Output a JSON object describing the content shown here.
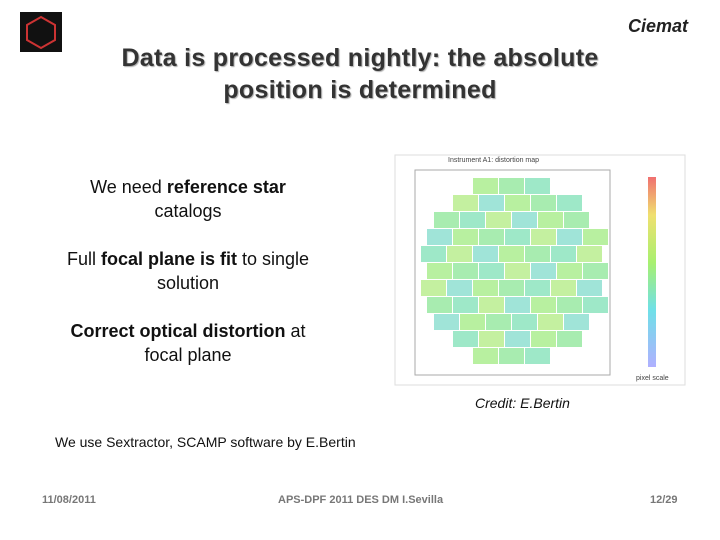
{
  "logo": "Ciemat",
  "title": [
    "Data is processed nightly: the absolute",
    "position is determined"
  ],
  "points": [
    {
      "lines": [
        [
          {
            "text": "We need "
          },
          {
            "text": "reference star",
            "bold": true
          }
        ],
        [
          {
            "text": "catalogs"
          }
        ]
      ]
    },
    {
      "lines": [
        [
          {
            "text": "Full "
          },
          {
            "text": "focal plane is fit",
            "bold": true
          },
          {
            "text": " to single"
          }
        ],
        [
          {
            "text": "solution"
          }
        ]
      ]
    },
    {
      "lines": [
        [
          {
            "text": "Correct optical distortion",
            "bold": true
          },
          {
            "text": " at"
          }
        ],
        [
          {
            "text": "focal plane"
          }
        ]
      ]
    }
  ],
  "figure": {
    "title": "Instrument A1: distortion map",
    "colorbar_label": "pixel scale"
  },
  "credit": "Credit: E.Bertin",
  "note": "We use Sextractor, SCAMP software by E.Bertin",
  "footer": {
    "date": "11/08/2011",
    "event": "APS-DPF 2011 DES DM I.Sevilla",
    "page": "12/29"
  }
}
